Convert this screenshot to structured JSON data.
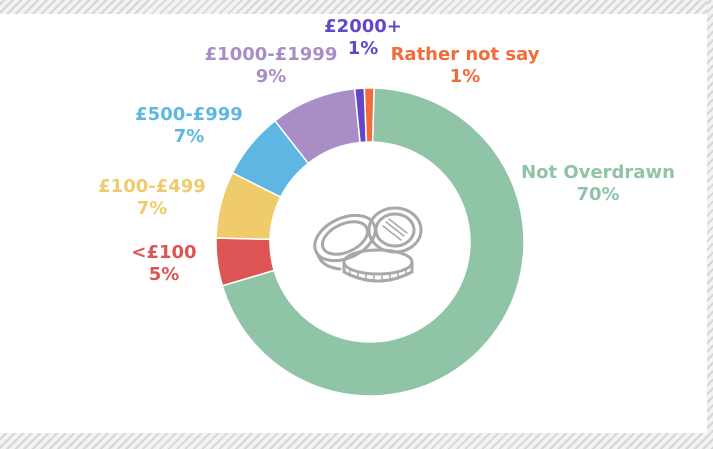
{
  "chart_data": {
    "type": "pie",
    "donut": true,
    "center_icon": "coins-icon",
    "categories": [
      "Not Overdrawn",
      "<£100",
      "£100-£499",
      "£500-£999",
      "£1000-£1999",
      "£2000+",
      "Rather not say"
    ],
    "values": [
      70,
      5,
      7,
      7,
      9,
      1,
      1
    ],
    "value_labels": [
      "70%",
      "5%",
      "7%",
      "7%",
      "9%",
      "1%",
      "1%"
    ],
    "colors": [
      "#8fc4a6",
      "#dd5455",
      "#efcb6b",
      "#5fb6e3",
      "#a98ec6",
      "#6247c8",
      "#f26b3a"
    ]
  }
}
